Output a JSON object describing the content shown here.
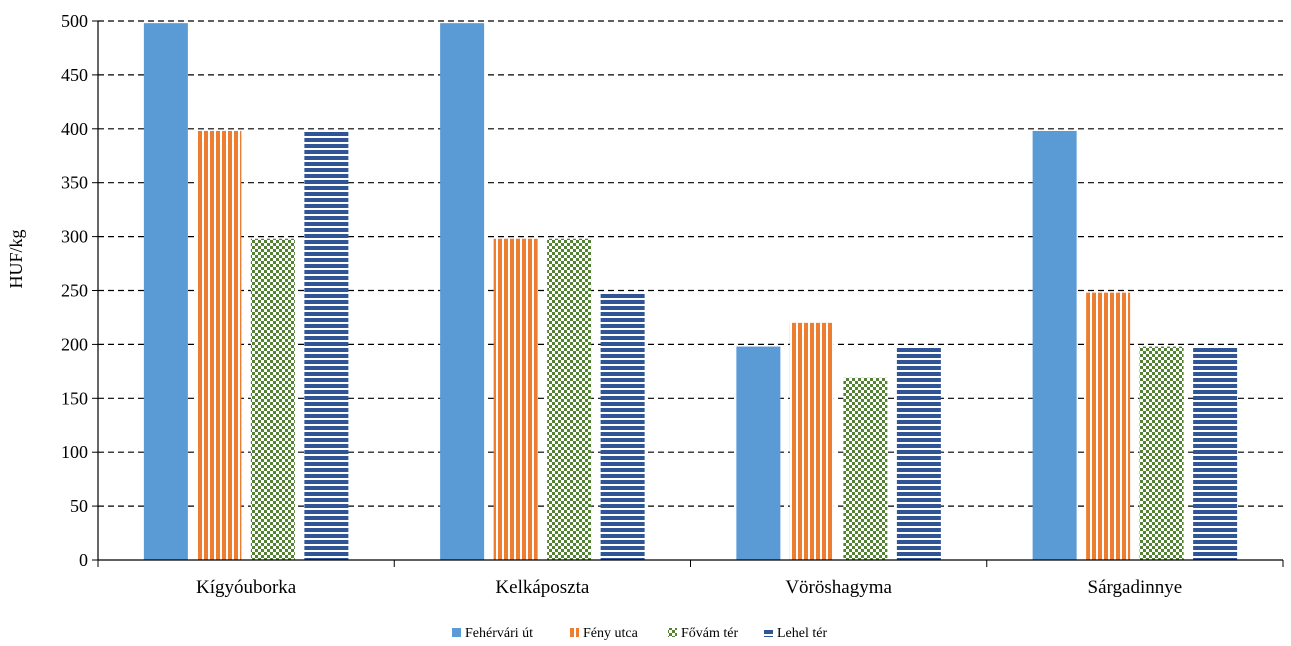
{
  "chart_data": {
    "type": "bar",
    "ylabel": "HUF/kg",
    "xlabel": "",
    "ylim": [
      0,
      500
    ],
    "yticks": [
      0,
      50,
      100,
      150,
      200,
      250,
      300,
      350,
      400,
      450,
      500
    ],
    "grid": true,
    "legend_position": "bottom",
    "categories": [
      "Kígyóuborka",
      "Kelkáposzta",
      "Vöröshagyma",
      "Sárgadinnye"
    ],
    "series": [
      {
        "name": "Fehérvári út",
        "values": [
          498,
          498,
          198,
          398
        ],
        "color": "#5b9bd5",
        "pattern": "solid"
      },
      {
        "name": "Fény utca",
        "values": [
          398,
          298,
          220,
          248
        ],
        "color": "#ed7d31",
        "pattern": "vertical-stripes"
      },
      {
        "name": "Fővám tér",
        "values": [
          298,
          298,
          169,
          198
        ],
        "color": "#548235",
        "pattern": "checkerboard"
      },
      {
        "name": "Lehel tér",
        "values": [
          398,
          248,
          198,
          198
        ],
        "color": "#2f5597",
        "pattern": "horizontal-stripes"
      }
    ]
  }
}
